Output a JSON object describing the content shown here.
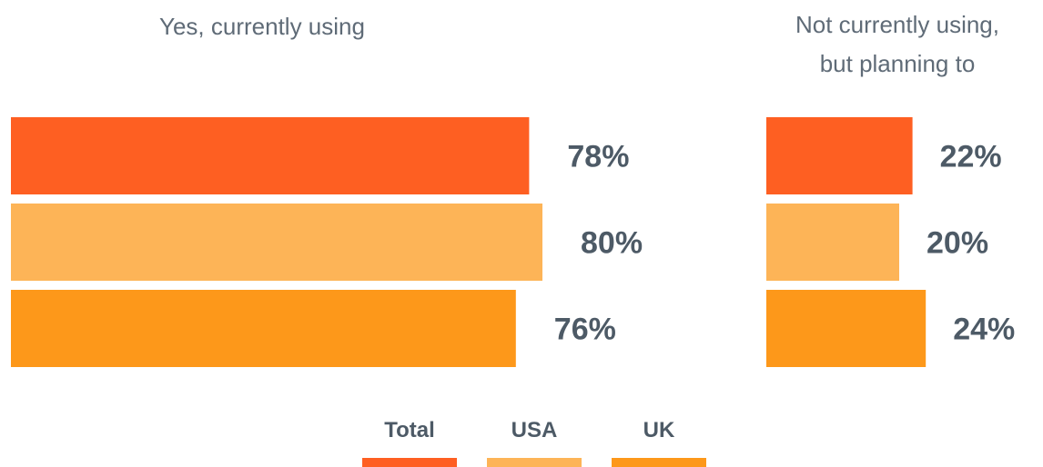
{
  "chart_data": {
    "type": "bar",
    "orientation": "horizontal",
    "panels": [
      {
        "title": [
          "Yes, currently using"
        ],
        "series_values": [
          78,
          80,
          76
        ],
        "labels": [
          "78%",
          "80%",
          "76%"
        ]
      },
      {
        "title": [
          "Not currently using,",
          "but planning to"
        ],
        "series_values": [
          22,
          20,
          24
        ],
        "labels": [
          "22%",
          "20%",
          "24%"
        ]
      }
    ],
    "series": [
      {
        "name": "Total",
        "color": "#fe5f22"
      },
      {
        "name": "USA",
        "color": "#fdb457"
      },
      {
        "name": "UK",
        "color": "#fd981a"
      }
    ],
    "unit": "%",
    "grid": false,
    "legend_position": "bottom-center"
  }
}
